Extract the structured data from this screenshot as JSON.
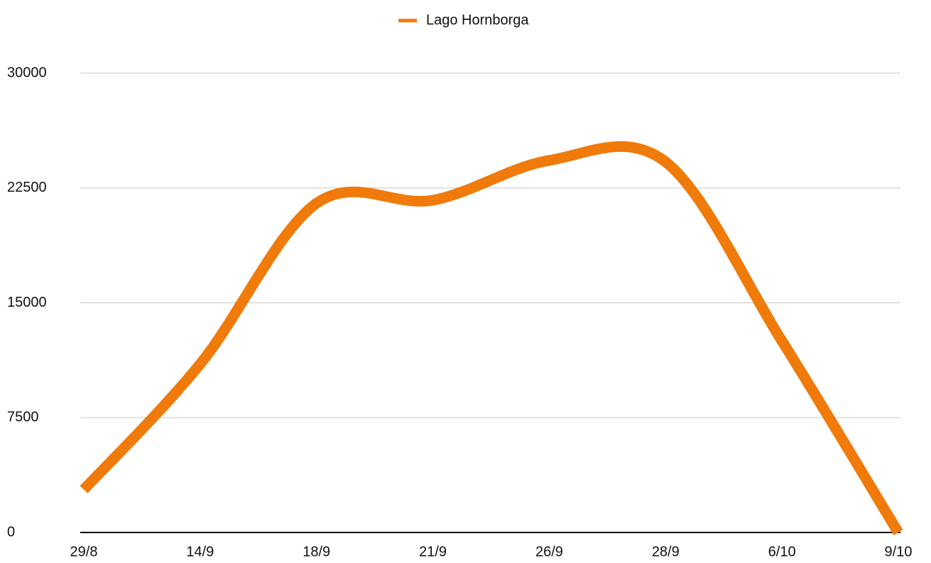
{
  "chart_data": {
    "type": "line",
    "categories": [
      "29/8",
      "14/9",
      "18/9",
      "21/9",
      "26/9",
      "28/9",
      "6/10",
      "9/10"
    ],
    "series": [
      {
        "name": "Lago Hornborga",
        "color": "#f07a0a",
        "values": [
          2800,
          11000,
          21500,
          21700,
          24300,
          24200,
          12500,
          0
        ]
      }
    ],
    "ylim": [
      0,
      30000
    ],
    "yticks": [
      0,
      7500,
      15000,
      22500,
      30000
    ],
    "grid": true,
    "legend": "top"
  }
}
